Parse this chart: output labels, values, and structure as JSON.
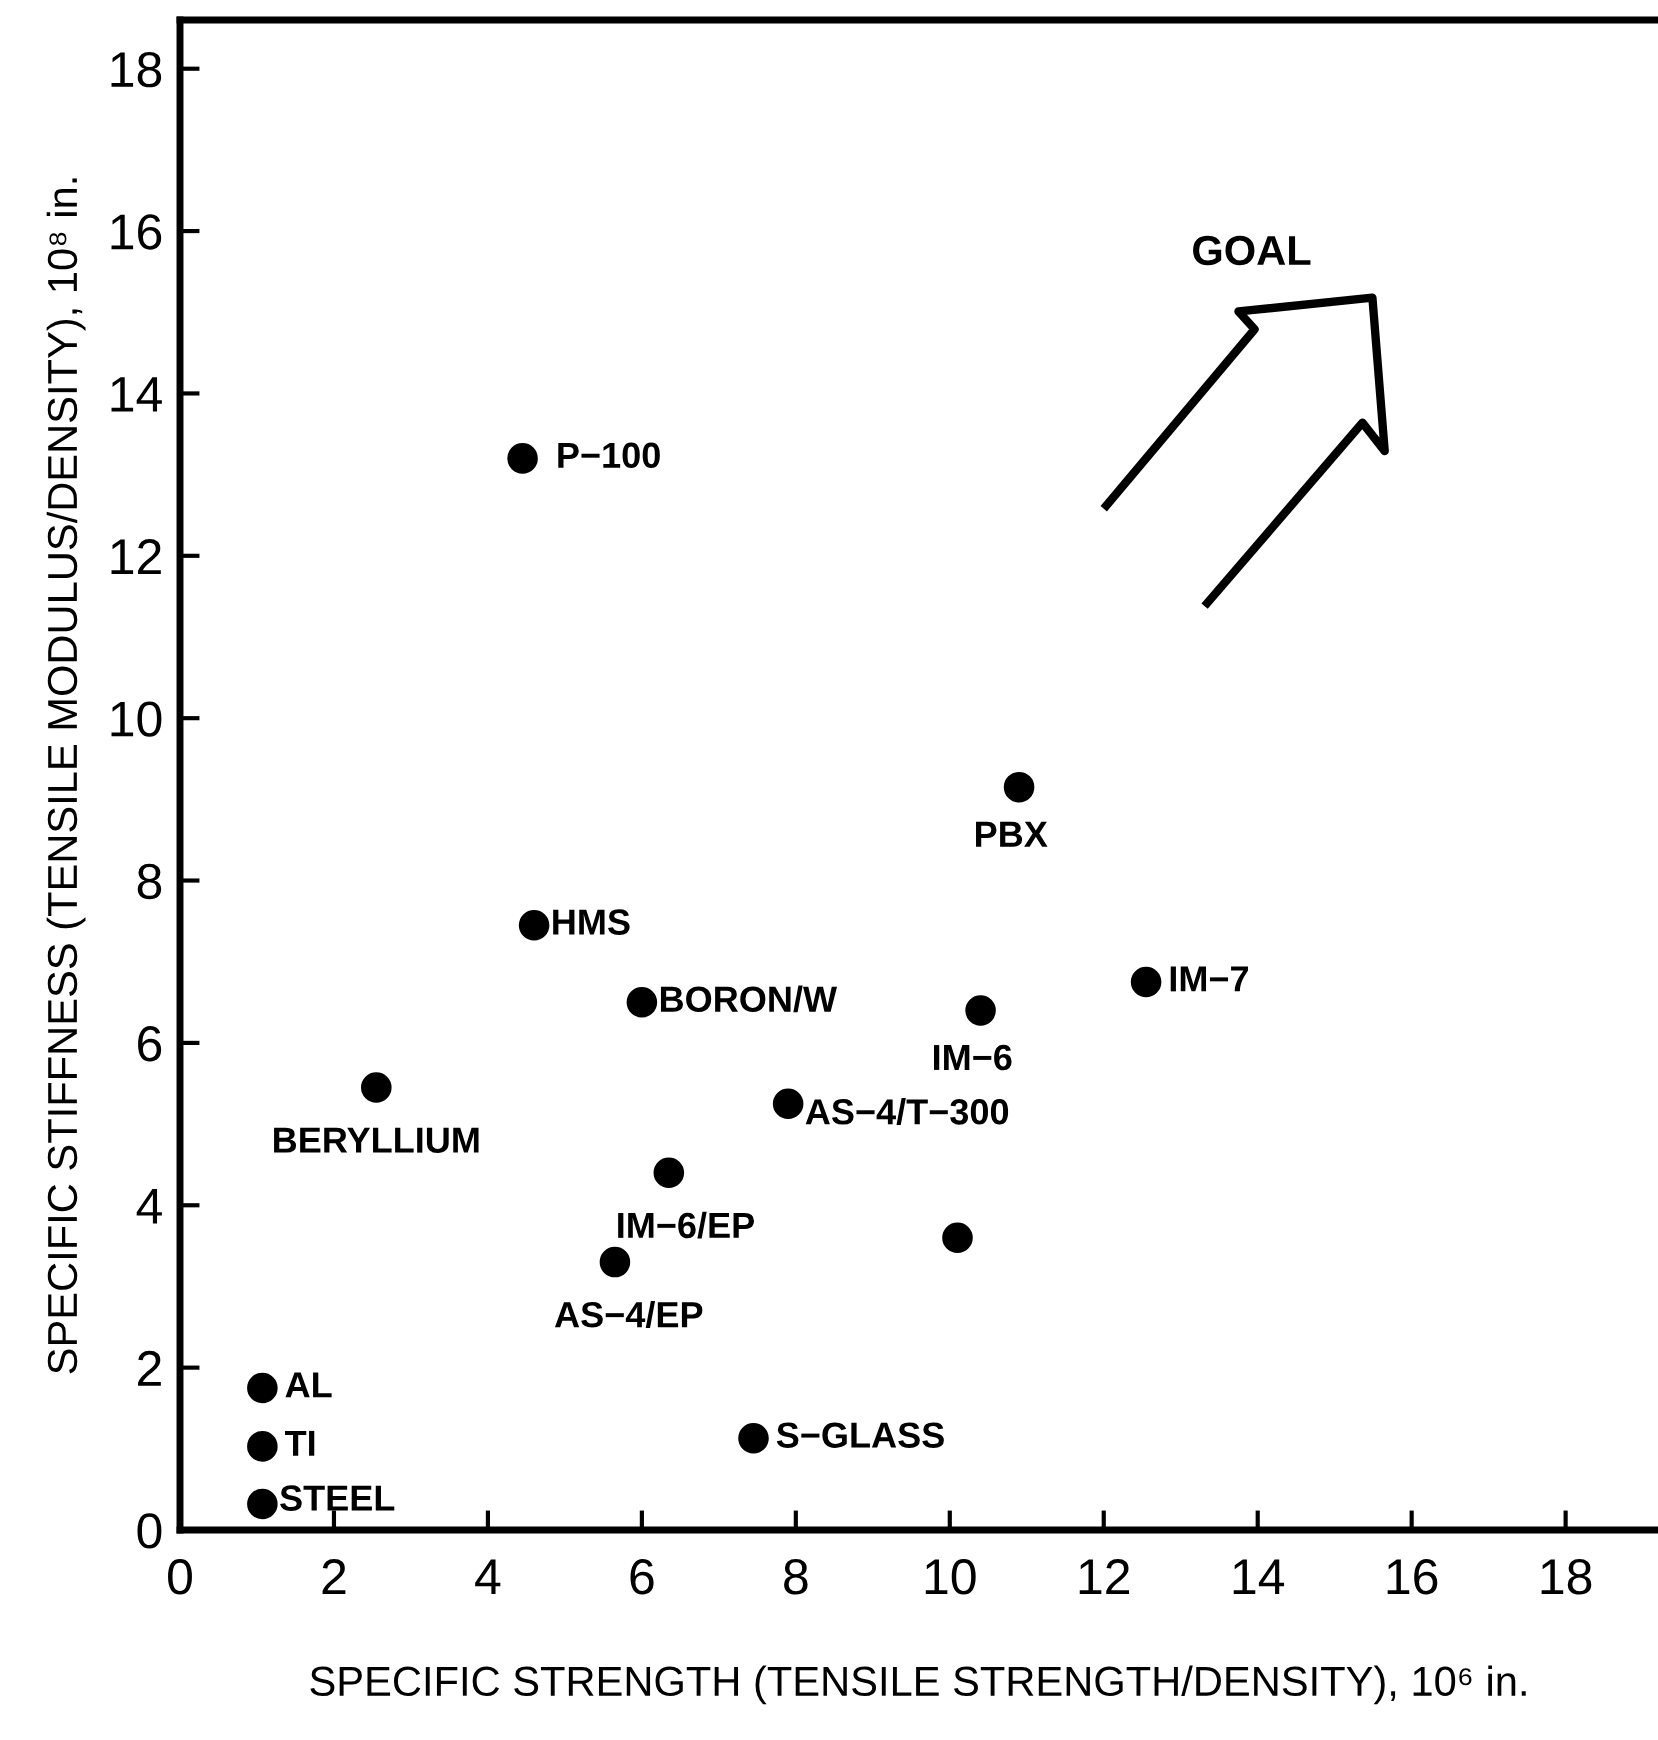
{
  "chart_data": {
    "type": "scatter",
    "xlabel": "SPECIFIC STRENGTH (TENSILE STRENGTH/DENSITY), 10⁶ in.",
    "ylabel": "SPECIFIC STIFFNESS (TENSILE MODULUS/DENSITY), 10⁸ in.",
    "series": [
      {
        "color": "#000000",
        "x": [
          4.45,
          4.6,
          6.0,
          2.55,
          7.9,
          6.35,
          5.65,
          1.07,
          1.07,
          1.07,
          7.45,
          10.9,
          12.55,
          10.4,
          10.1
        ],
        "values": [
          13.2,
          7.45,
          6.5,
          5.45,
          5.25,
          4.4,
          3.3,
          1.75,
          1.03,
          0.32,
          1.13,
          9.15,
          6.75,
          6.4,
          3.6
        ]
      }
    ],
    "marker": "circle",
    "xlim": [
      0,
      19.2
    ],
    "ylim": [
      0,
      18.6
    ],
    "xticks": [
      0,
      2,
      4,
      6,
      8,
      10,
      12,
      14,
      16,
      18
    ],
    "yticks": [
      0,
      2,
      4,
      6,
      8,
      10,
      12,
      14,
      16,
      18
    ],
    "grid": false,
    "legend": false,
    "annotations": [
      {
        "text": "P−100",
        "x": 4.45,
        "y": 13.2
      },
      {
        "text": "HMS",
        "x": 4.6,
        "y": 7.45
      },
      {
        "text": "BORON/W",
        "x": 6.0,
        "y": 6.5
      },
      {
        "text": "BERYLLIUM",
        "x": 2.55,
        "y": 5.45
      },
      {
        "text": "AS−4/T−300",
        "x": 7.9,
        "y": 5.25
      },
      {
        "text": "IM−6/EP",
        "x": 6.35,
        "y": 4.4
      },
      {
        "text": "AS−4/EP",
        "x": 5.65,
        "y": 3.3
      },
      {
        "text": "AL",
        "x": 1.07,
        "y": 1.75
      },
      {
        "text": "TI",
        "x": 1.07,
        "y": 1.03
      },
      {
        "text": "STEEL",
        "x": 1.07,
        "y": 0.32
      },
      {
        "text": "S−GLASS",
        "x": 7.45,
        "y": 1.13
      },
      {
        "text": "PBX",
        "x": 10.9,
        "y": 9.15
      },
      {
        "text": "IM−7",
        "x": 12.55,
        "y": 6.75
      },
      {
        "text": "IM−6",
        "x": 10.4,
        "y": 6.4
      },
      "GOAL"
    ]
  }
}
